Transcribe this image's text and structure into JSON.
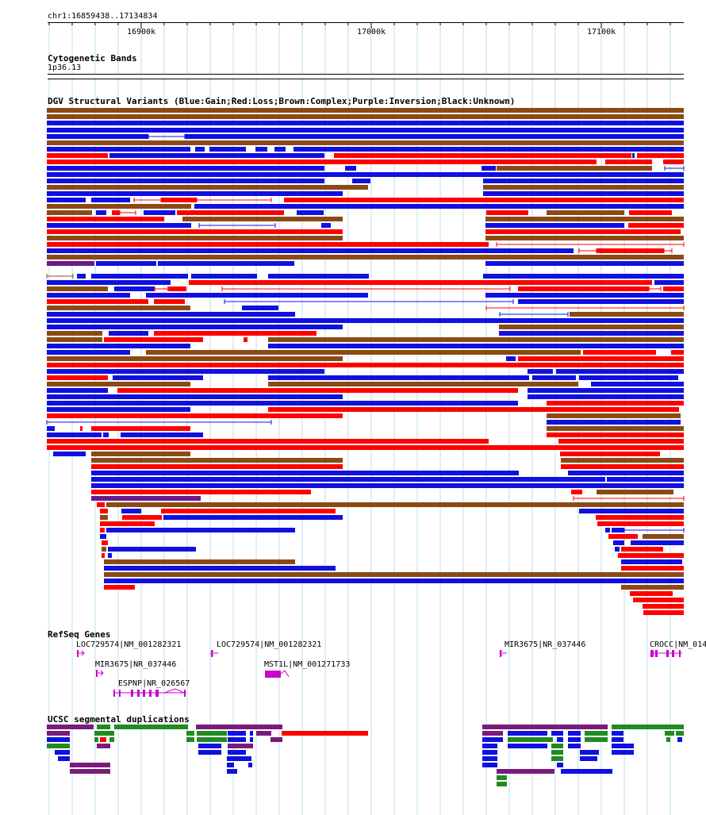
{
  "locus": "chr1:16859438..17134834",
  "scale": {
    "ticks": [
      "16900k",
      "17000k",
      "17100k"
    ],
    "tick_positions_bp": [
      16900000,
      17000000,
      17100000
    ],
    "range_bp": [
      16859438,
      17134834
    ]
  },
  "tracks": {
    "cytoband": {
      "title": "Cytogenetic Bands",
      "band": "1p36.13"
    },
    "dgv": {
      "title": "DGV Structural Variants (Blue:Gain;Red:Loss;Brown:Complex;Purple:Inversion;Black:Unknown)",
      "colors": {
        "gain": "#1010e0",
        "loss": "#ff0000",
        "complex": "#8b4a14",
        "inversion": "#6a1a8a",
        "unknown": "#000000"
      }
    },
    "refseq": {
      "title": "RefSeq Genes",
      "color": "#cc00cc",
      "genes": [
        {
          "label": "LOC729574|NM_001282321"
        },
        {
          "label": "MIR3675|NR_037446"
        },
        {
          "label": "ESPNP|NR_026567"
        },
        {
          "label": "LOC729574|NM_001282321"
        },
        {
          "label": "MST1L|NM_001271733"
        },
        {
          "label": "MIR3675|NR_037446"
        },
        {
          "label": "CROCC|NM_014"
        }
      ]
    },
    "segdups": {
      "title": "UCSC segmental duplications",
      "colors": {
        "purple": "#7a1a7a",
        "green": "#218a21",
        "blue": "#1010e0",
        "red": "#ff0000"
      }
    }
  }
}
